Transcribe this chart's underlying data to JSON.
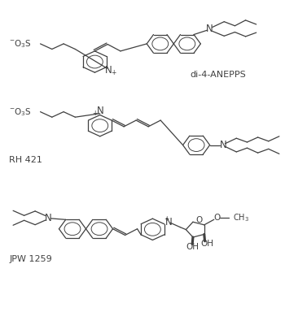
{
  "background_color": "#ffffff",
  "line_color": "#404040",
  "text_color": "#404040",
  "figsize": [
    3.77,
    4.05
  ],
  "dpi": 100,
  "labels": {
    "di4ANEPPS": "di-4-ANEPPS",
    "RH421": "RH 421",
    "JPW1259": "JPW 1259"
  },
  "font_size": 7.5,
  "lw": 0.9
}
